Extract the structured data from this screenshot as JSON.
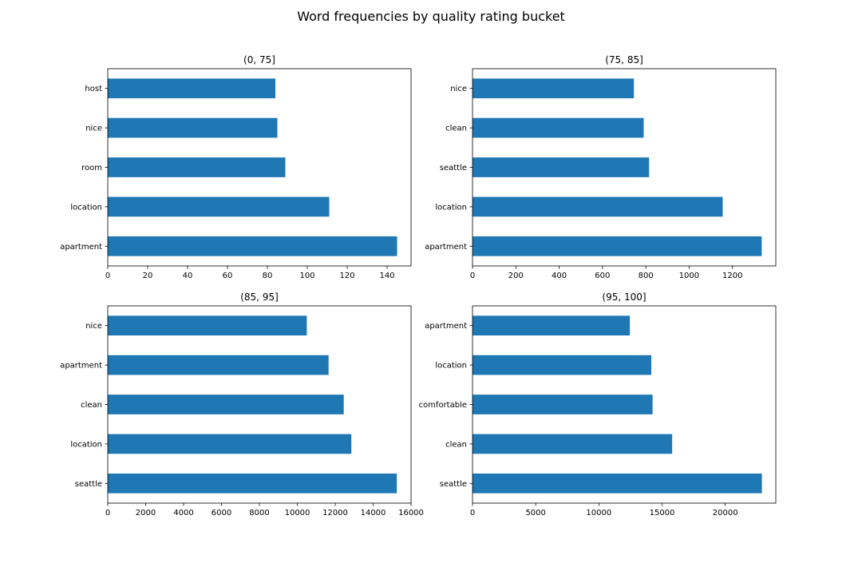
{
  "figure": {
    "suptitle": "Word frequencies by quality rating bucket"
  },
  "chart_data": [
    {
      "type": "bar",
      "orientation": "horizontal",
      "title": "(0, 75]",
      "categories": [
        "apartment",
        "location",
        "room",
        "nice",
        "host"
      ],
      "values": [
        145,
        111,
        89,
        85,
        84
      ],
      "xlim": [
        0,
        152
      ],
      "xticks": [
        0,
        20,
        40,
        60,
        80,
        100,
        120,
        140
      ],
      "color": "#1f77b4"
    },
    {
      "type": "bar",
      "orientation": "horizontal",
      "title": "(75, 85]",
      "categories": [
        "apartment",
        "location",
        "seattle",
        "clean",
        "nice"
      ],
      "values": [
        1335,
        1155,
        815,
        790,
        745
      ],
      "xlim": [
        0,
        1400
      ],
      "xticks": [
        0,
        200,
        400,
        600,
        800,
        1000,
        1200
      ],
      "color": "#1f77b4"
    },
    {
      "type": "bar",
      "orientation": "horizontal",
      "title": "(85, 95]",
      "categories": [
        "seattle",
        "location",
        "clean",
        "apartment",
        "nice"
      ],
      "values": [
        15250,
        12850,
        12450,
        11650,
        10500
      ],
      "xlim": [
        0,
        16000
      ],
      "xticks": [
        0,
        2000,
        4000,
        6000,
        8000,
        10000,
        12000,
        14000,
        16000
      ],
      "color": "#1f77b4"
    },
    {
      "type": "bar",
      "orientation": "horizontal",
      "title": "(95, 100]",
      "categories": [
        "seattle",
        "clean",
        "comfortable",
        "location",
        "apartment"
      ],
      "values": [
        22900,
        15800,
        14250,
        14150,
        12450
      ],
      "xlim": [
        0,
        24000
      ],
      "xticks": [
        0,
        5000,
        10000,
        15000,
        20000
      ],
      "color": "#1f77b4"
    }
  ]
}
